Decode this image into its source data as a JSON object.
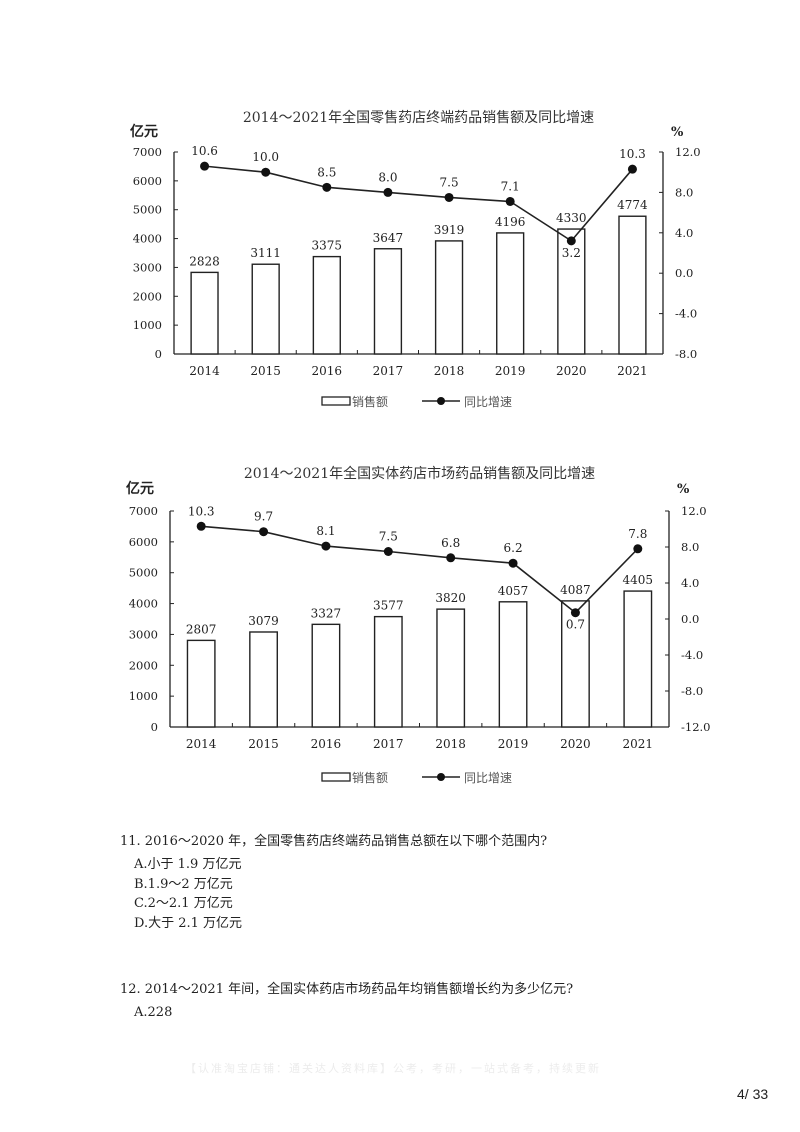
{
  "chart_data": [
    {
      "type": "bar+line",
      "title": "2014～2021年全国零售药店终端药品销售额及同比增速",
      "ylabel_left": "亿元",
      "ylabel_right": "%",
      "categories": [
        "2014",
        "2015",
        "2016",
        "2017",
        "2018",
        "2019",
        "2020",
        "2021"
      ],
      "series": [
        {
          "name": "销售额",
          "type": "bar",
          "axis": "left",
          "values": [
            2828,
            3111,
            3375,
            3647,
            3919,
            4196,
            4330,
            4774
          ]
        },
        {
          "name": "同比增速",
          "type": "line",
          "axis": "right",
          "values": [
            10.6,
            10.0,
            8.5,
            8.0,
            7.5,
            7.1,
            3.2,
            10.3
          ]
        }
      ],
      "ylim_left": [
        0,
        7000
      ],
      "yticks_left": [
        "0",
        "1000",
        "2000",
        "3000",
        "4000",
        "5000",
        "6000",
        "7000"
      ],
      "ylim_right": [
        -8.0,
        12.0
      ],
      "yticks_right": [
        "-8.0",
        "-4.0",
        "0.0",
        "4.0",
        "8.0",
        "12.0"
      ],
      "legend": [
        "销售额",
        "同比增速"
      ],
      "legend_position": "bottom",
      "grid": false
    },
    {
      "type": "bar+line",
      "title": "2014～2021年全国实体药店市场药品销售额及同比增速",
      "ylabel_left": "亿元",
      "ylabel_right": "%",
      "categories": [
        "2014",
        "2015",
        "2016",
        "2017",
        "2018",
        "2019",
        "2020",
        "2021"
      ],
      "series": [
        {
          "name": "销售额",
          "type": "bar",
          "axis": "left",
          "values": [
            2807,
            3079,
            3327,
            3577,
            3820,
            4057,
            4087,
            4405
          ]
        },
        {
          "name": "同比增速",
          "type": "line",
          "axis": "right",
          "values": [
            10.3,
            9.7,
            8.1,
            7.5,
            6.8,
            6.2,
            0.7,
            7.8
          ]
        }
      ],
      "ylim_left": [
        0,
        7000
      ],
      "yticks_left": [
        "0",
        "1000",
        "2000",
        "3000",
        "4000",
        "5000",
        "6000",
        "7000"
      ],
      "ylim_right": [
        -12.0,
        12.0
      ],
      "yticks_right": [
        "-12.0",
        "-8.0",
        "-4.0",
        "0.0",
        "4.0",
        "8.0",
        "12.0"
      ],
      "legend": [
        "销售额",
        "同比增速"
      ],
      "legend_position": "bottom",
      "grid": false
    }
  ],
  "questions": [
    {
      "title": "11. 2016～2020 年，全国零售药店终端药品销售总额在以下哪个范围内?",
      "options": [
        "A.小于 1.9 万亿元",
        "B.1.9～2 万亿元",
        "C.2～2.1 万亿元",
        "D.大于 2.1 万亿元"
      ]
    },
    {
      "title": "12. 2014～2021 年间，全国实体药店市场药品年均销售额增长约为多少亿元?",
      "options": [
        "A.228"
      ]
    }
  ],
  "watermark": "【认准淘宝店铺：通关达人资料库】公考，考研，一站式备考，持续更新",
  "page_number": "4/ 33"
}
